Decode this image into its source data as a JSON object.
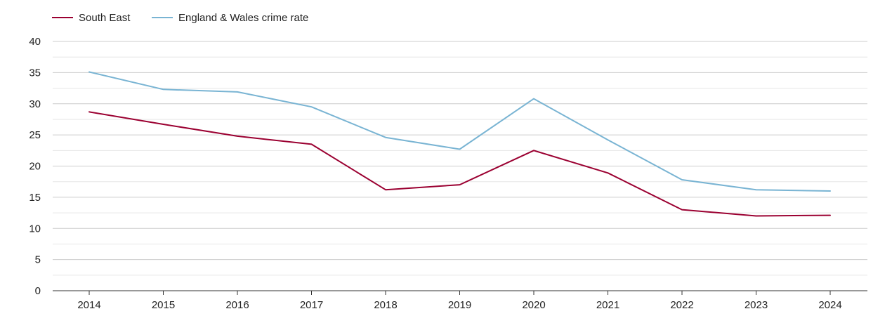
{
  "colors": {
    "south_east": "#9b0031",
    "england_wales": "#79b4d3",
    "grid": "#cccccc",
    "minor_grid": "#e6e6e6",
    "axis": "#333333"
  },
  "chart_data": {
    "type": "line",
    "title": "",
    "xlabel": "",
    "ylabel": "",
    "x": [
      "2014",
      "2015",
      "2016",
      "2017",
      "2018",
      "2019",
      "2020",
      "2021",
      "2022",
      "2023",
      "2024"
    ],
    "ylim": [
      0,
      40
    ],
    "yticks": [
      "0",
      "5",
      "10",
      "15",
      "20",
      "25",
      "30",
      "35",
      "40"
    ],
    "grid": true,
    "legend_position": "top-left",
    "series": [
      {
        "name": "South East",
        "color": "#9b0031",
        "values": [
          28.7,
          26.7,
          24.8,
          23.5,
          16.2,
          17.0,
          22.5,
          18.9,
          13.0,
          12.0,
          12.1
        ]
      },
      {
        "name": "England & Wales crime rate",
        "color": "#79b4d3",
        "values": [
          35.1,
          32.3,
          31.9,
          29.5,
          24.6,
          22.7,
          30.8,
          24.2,
          17.8,
          16.2,
          16.0
        ]
      }
    ]
  }
}
